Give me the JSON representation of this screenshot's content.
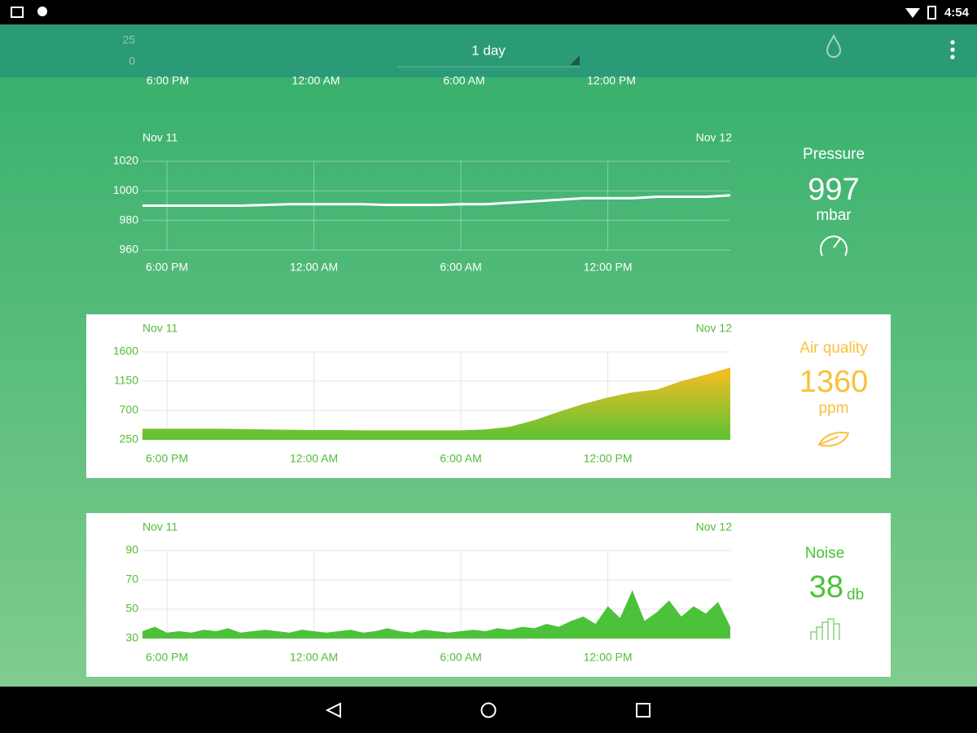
{
  "status_bar": {
    "time": "4:54"
  },
  "toolbar": {
    "range": "1 day",
    "background_chart": {
      "yticks": [
        "25",
        "0"
      ],
      "xticks": [
        "6:00 PM",
        "12:00 AM",
        "6:00 AM",
        "12:00 PM"
      ]
    }
  },
  "panels": [
    {
      "title": "Pressure",
      "value": "997",
      "unit": "mbar",
      "chart": {
        "type": "line",
        "date_start": "Nov 11",
        "date_end": "Nov 12",
        "color": "#ffffff",
        "x": [
          17,
          18,
          19,
          20,
          21,
          22,
          23,
          24,
          25,
          26,
          27,
          28,
          29,
          30,
          31,
          32,
          33,
          34,
          35,
          36,
          37,
          38,
          39,
          40,
          41
        ],
        "values": [
          990,
          990,
          990,
          990,
          990,
          990.5,
          991,
          991,
          991,
          991,
          990.5,
          990.5,
          990.5,
          991,
          991,
          992,
          993,
          994,
          995,
          995,
          995,
          996,
          996,
          996,
          997
        ],
        "xlim": [
          17,
          41
        ],
        "ylim": [
          960,
          1020
        ],
        "xticks": [
          {
            "value": 18,
            "label": "6:00 PM"
          },
          {
            "value": 24,
            "label": "12:00 AM"
          },
          {
            "value": 30,
            "label": "6:00 AM"
          },
          {
            "value": 36,
            "label": "12:00 PM"
          }
        ],
        "yticks": [
          960,
          980,
          1000,
          1020
        ]
      }
    },
    {
      "title": "Air quality",
      "value": "1360",
      "unit": "ppm",
      "chart": {
        "type": "area",
        "date_start": "Nov 11",
        "date_end": "Nov 12",
        "color": "#f8bd24",
        "x": [
          17,
          18,
          19,
          20,
          21,
          22,
          23,
          24,
          25,
          26,
          27,
          28,
          29,
          30,
          31,
          32,
          33,
          34,
          35,
          36,
          37,
          38,
          39,
          40,
          41
        ],
        "values": [
          420,
          420,
          420,
          420,
          415,
          410,
          405,
          400,
          400,
          395,
          395,
          395,
          395,
          395,
          410,
          450,
          550,
          680,
          800,
          900,
          980,
          1020,
          1150,
          1250,
          1360
        ],
        "xlim": [
          17,
          41
        ],
        "ylim": [
          250,
          1600
        ],
        "xticks": [
          {
            "value": 18,
            "label": "6:00 PM"
          },
          {
            "value": 24,
            "label": "12:00 AM"
          },
          {
            "value": 30,
            "label": "6:00 AM"
          },
          {
            "value": 36,
            "label": "12:00 PM"
          }
        ],
        "yticks": [
          250,
          700,
          1150,
          1600
        ]
      }
    },
    {
      "title": "Noise",
      "value": "38",
      "unit": "db",
      "chart": {
        "type": "area",
        "date_start": "Nov 11",
        "date_end": "Nov 12",
        "color": "#4cc23a",
        "x": [
          17,
          17.5,
          18,
          18.5,
          19,
          19.5,
          20,
          20.5,
          21,
          21.5,
          22,
          22.5,
          23,
          23.5,
          24,
          24.5,
          25,
          25.5,
          26,
          26.5,
          27,
          27.5,
          28,
          28.5,
          29,
          29.5,
          30,
          30.5,
          31,
          31.5,
          32,
          32.5,
          33,
          33.5,
          34,
          34.5,
          35,
          35.5,
          36,
          36.5,
          37,
          37.5,
          38,
          38.5,
          39,
          39.5,
          40,
          40.5,
          41
        ],
        "values": [
          35,
          38,
          34,
          35,
          34,
          36,
          35,
          37,
          34,
          35,
          36,
          35,
          34,
          36,
          35,
          34,
          35,
          36,
          34,
          35,
          37,
          35,
          34,
          36,
          35,
          34,
          35,
          36,
          35,
          37,
          36,
          38,
          37,
          40,
          38,
          42,
          45,
          40,
          52,
          44,
          63,
          42,
          48,
          56,
          45,
          52,
          47,
          55,
          38
        ],
        "xlim": [
          17,
          41
        ],
        "ylim": [
          30,
          90
        ],
        "xticks": [
          {
            "value": 18,
            "label": "6:00 PM"
          },
          {
            "value": 24,
            "label": "12:00 AM"
          },
          {
            "value": 30,
            "label": "6:00 AM"
          },
          {
            "value": 36,
            "label": "12:00 PM"
          }
        ],
        "yticks": [
          30,
          50,
          70,
          90
        ]
      }
    }
  ]
}
